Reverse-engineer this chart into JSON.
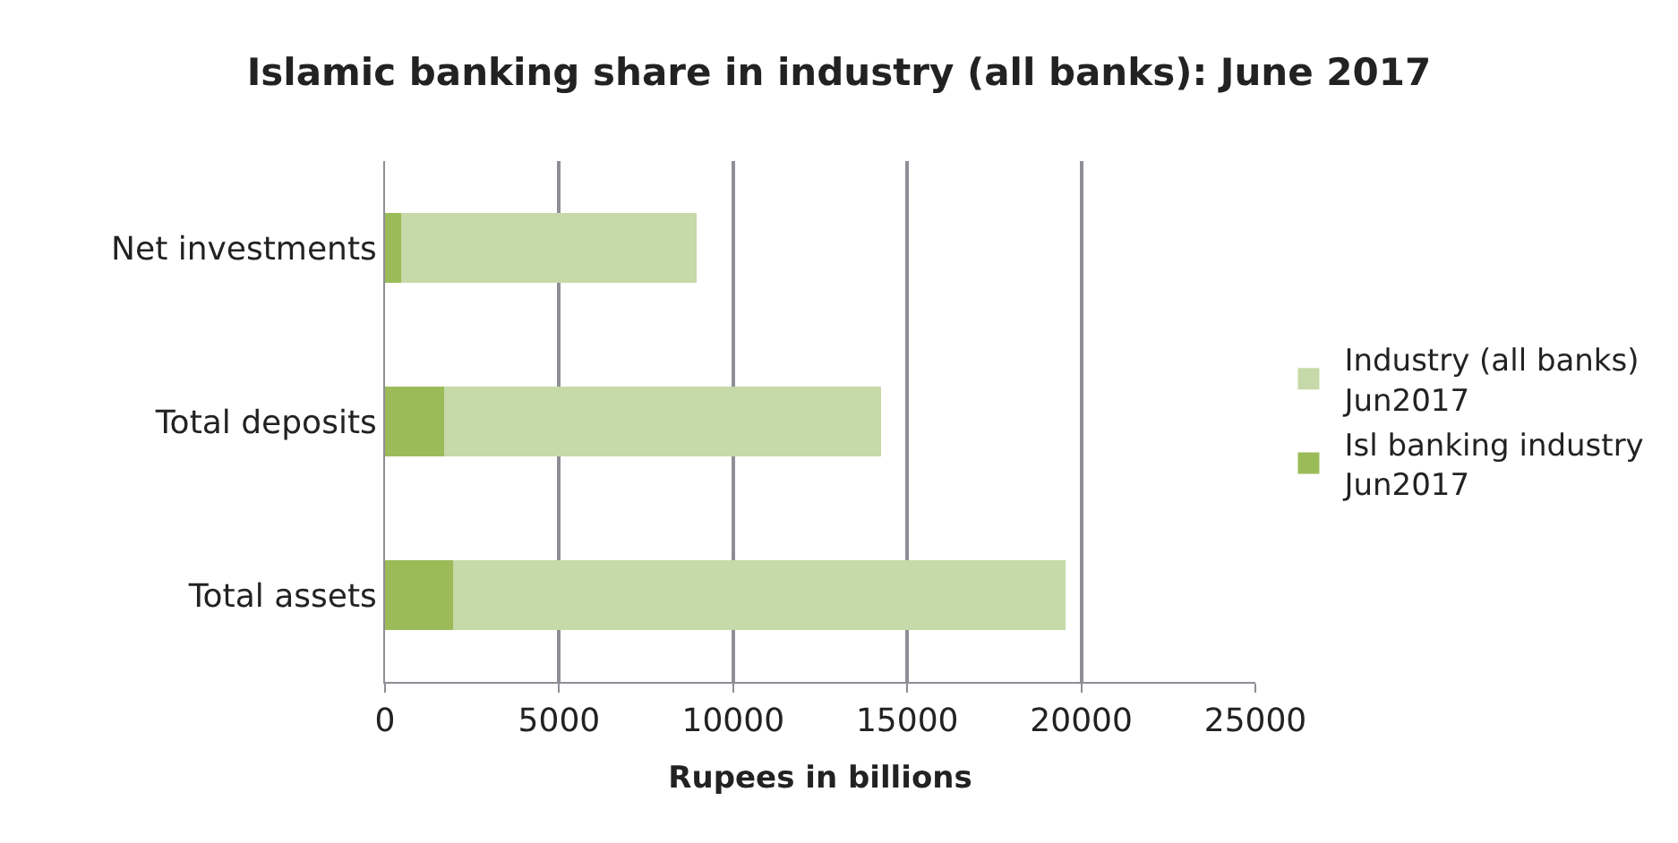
{
  "chart_data": {
    "type": "bar",
    "orientation": "horizontal",
    "stacked": true,
    "title": "Islamic banking share in industry (all banks): June 2017",
    "xlabel": "Rupees in billions",
    "categories": [
      "Net investments",
      "Total deposits",
      "Total assets"
    ],
    "series": [
      {
        "name": "Isl banking industry Jun2017",
        "color": "#9bbb59",
        "values": [
          450,
          1700,
          1950
        ]
      },
      {
        "name": "Industry (all banks) Jun2017",
        "color": "#c6d9a8",
        "values": [
          8500,
          12550,
          17600
        ]
      }
    ],
    "xlim": [
      0,
      25000
    ],
    "xticks": [
      0,
      5000,
      10000,
      15000,
      20000,
      25000
    ],
    "grid": "x",
    "legend": "right"
  }
}
